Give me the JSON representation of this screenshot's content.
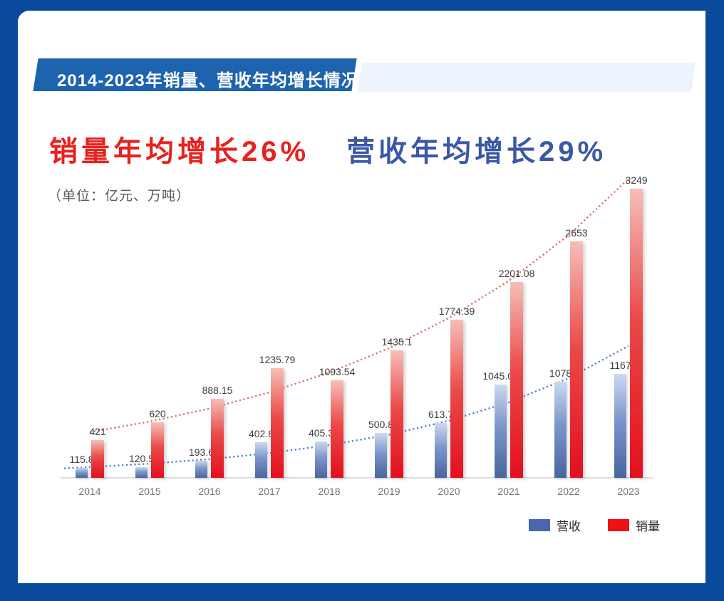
{
  "banner": {
    "title": "2014-2023年销量、营收年均增长情况"
  },
  "headline": {
    "sales": "销量年均增长26%",
    "revenue": "营收年均增长29%"
  },
  "unit_label": "（单位：亿元、万吨）",
  "legend": [
    {
      "key": "revenue",
      "name": "营收",
      "color": "#4a66ad"
    },
    {
      "key": "sales",
      "name": "销量",
      "color": "#ee1313"
    }
  ],
  "colors": {
    "frame_blue": "#0a4a9d",
    "banner_blue": "#1e63ad",
    "banner_light": "#ecf3fc",
    "headline_red": "#e8211e",
    "headline_blue": "#3b57a6",
    "axis_gray": "#dcdcdc",
    "label_gray": "#3d3d3d",
    "tick_gray": "#737373"
  },
  "chart_data": {
    "type": "bar",
    "title": "销量年均增长26%　营收年均增长29%",
    "unit": "亿元、万吨",
    "categories": [
      "2014",
      "2015",
      "2016",
      "2017",
      "2018",
      "2019",
      "2020",
      "2021",
      "2022",
      "2023"
    ],
    "series": [
      {
        "key": "revenue",
        "name": "营收",
        "color_top": "#ccd9ef",
        "color_mid": "#7b96cb",
        "color_bottom": "#49659e",
        "values": [
          115.8,
          120.5,
          193.6,
          402.8,
          405.3,
          500.8,
          613.7,
          1045.05,
          1078,
          1167
        ]
      },
      {
        "key": "sales",
        "name": "销量",
        "color_top": "#f6beb8",
        "color_mid": "#ea4a49",
        "color_bottom": "#e30f1e",
        "values": [
          421,
          620,
          888.15,
          1235.79,
          1093.54,
          1435.1,
          1774.39,
          2201.08,
          2653,
          3249
        ]
      }
    ],
    "trendlines": [
      {
        "series": "营收",
        "type": "exponential",
        "color": "#4d7ad0",
        "fitted": [
          120.2,
          158.9,
          210,
          277.6,
          367,
          485.1,
          641.2,
          847.6,
          1120.4,
          1481.1
        ]
      },
      {
        "series": "销量",
        "type": "exponential",
        "color": "#db6b6b",
        "fitted": [
          512.7,
          631.8,
          778.5,
          959.3,
          1182,
          1457,
          1795,
          2212,
          2726,
          3359
        ]
      }
    ],
    "ylim": [
      0,
      3400
    ],
    "value_labels": true,
    "gridlines": false,
    "legend_position": "bottom-right"
  }
}
